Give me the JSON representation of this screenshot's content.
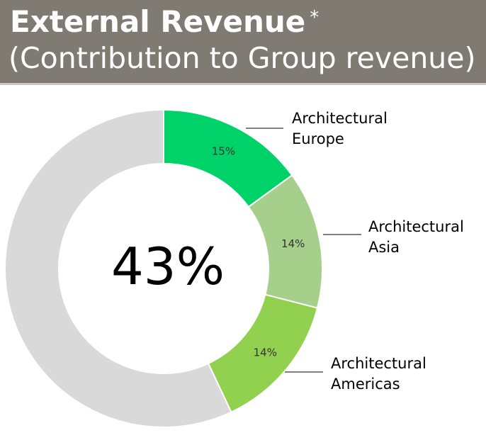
{
  "header": {
    "title": "External Revenue",
    "title_mark": "*",
    "subtitle": "(Contribution to Group revenue)"
  },
  "chart_data": {
    "type": "pie",
    "donut": true,
    "center_label": "43%",
    "categories": [
      "Architectural Europe",
      "Architectural Asia",
      "Architectural Americas",
      ""
    ],
    "category_lines": [
      [
        "Architectural",
        "Europe"
      ],
      [
        "Architectural",
        "Asia"
      ],
      [
        "Architectural",
        "Americas"
      ],
      []
    ],
    "values": [
      15,
      14,
      14,
      57
    ],
    "data_labels": [
      "15%",
      "14%",
      "14%",
      ""
    ],
    "colors": [
      "#00d26a",
      "#a6cf8c",
      "#92d050",
      "#d9d9d9"
    ],
    "start_angle_deg": 0,
    "direction": "clockwise",
    "legend": "none"
  }
}
